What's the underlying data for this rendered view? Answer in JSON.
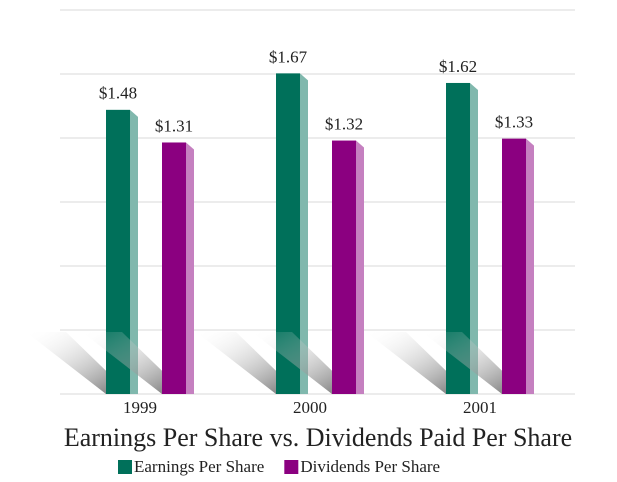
{
  "chart_data": {
    "type": "bar",
    "title": "Earnings Per Share vs. Dividends Paid Per Share",
    "categories": [
      "1999",
      "2000",
      "2001"
    ],
    "series": [
      {
        "name": "Earnings Per Share",
        "color": "#00705a",
        "values": [
          1.48,
          1.67,
          1.62
        ],
        "value_labels": [
          "$1.48",
          "$1.67",
          "$1.62"
        ]
      },
      {
        "name": "Dividends Per Share",
        "color": "#8b0080",
        "values": [
          1.31,
          1.32,
          1.33
        ],
        "value_labels": [
          "$1.31",
          "$1.32",
          "$1.33"
        ]
      }
    ],
    "ylim": [
      0,
      2
    ],
    "yticks": [
      0,
      0.3333,
      0.6667,
      1,
      1.3333,
      1.6667,
      2
    ],
    "grid": true,
    "legend": "bottom"
  }
}
